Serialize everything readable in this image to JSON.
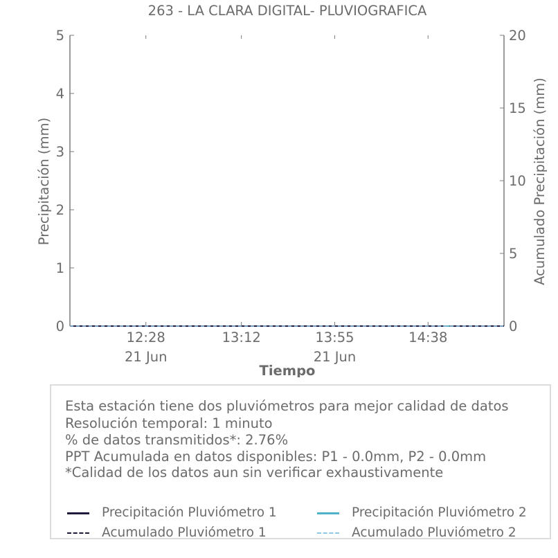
{
  "chart_data": {
    "type": "line",
    "title": "263 - LA CLARA DIGITAL- PLUVIOGRAFICA",
    "xlabel": "Tiempo",
    "ylabel_left": "Precipitación (mm)",
    "ylabel_right": "Acumulado Precipitación (mm)",
    "ylim_left": [
      0,
      5
    ],
    "ylim_right": [
      0,
      20
    ],
    "yticks_left": [
      "0",
      "1",
      "2",
      "3",
      "4",
      "5"
    ],
    "yticks_right": [
      "0",
      "5",
      "10",
      "15",
      "20"
    ],
    "xlim": [
      "11:53",
      "15:13"
    ],
    "xticks": [
      {
        "time": "12:28",
        "sub": "21 Jun"
      },
      {
        "time": "13:12",
        "sub": ""
      },
      {
        "time": "13:55",
        "sub": "21 Jun"
      },
      {
        "time": "14:38",
        "sub": ""
      }
    ],
    "grid": false,
    "series": [
      {
        "name": "Precipitación Pluviómetro 1",
        "axis": "left",
        "style": "solid",
        "color": "#1f1b3d",
        "x": [
          "11:53",
          "15:13"
        ],
        "values": [
          0,
          0
        ]
      },
      {
        "name": "Precipitación Pluviómetro 2",
        "axis": "left",
        "style": "solid",
        "color": "#4fb3c8",
        "x": [
          "14:45",
          "14:48"
        ],
        "values": [
          0,
          0
        ]
      },
      {
        "name": "Acumulado Pluviómetro 1",
        "axis": "right",
        "style": "dashed",
        "color": "#1f1b3d",
        "x": [
          "11:53",
          "15:13"
        ],
        "values": [
          0,
          0
        ]
      },
      {
        "name": "Acumulado Pluviómetro 2",
        "axis": "right",
        "style": "dashed",
        "color": "#8fc7e6",
        "x": [
          "11:53",
          "15:13"
        ],
        "values": [
          0,
          0
        ]
      }
    ]
  },
  "info": {
    "lines": [
      "Esta estación tiene dos pluviómetros para mejor calidad de datos",
      "Resolución temporal: 1 minuto",
      "% de datos transmitidos*: 2.76%",
      "PPT Acumulada en datos disponibles: P1 - 0.0mm, P2 - 0.0mm",
      "*Calidad de los datos aun sin verificar exhaustivamente"
    ]
  },
  "legend": {
    "items": [
      {
        "label": "Precipitación Pluviómetro 1",
        "color": "#1f1b3d",
        "style": "solid"
      },
      {
        "label": "Precipitación Pluviómetro 2",
        "color": "#4fb3c8",
        "style": "solid"
      },
      {
        "label": "Acumulado Pluviómetro 1",
        "color": "#1f1b3d",
        "style": "dashed"
      },
      {
        "label": "Acumulado Pluviómetro 2",
        "color": "#8fc7e6",
        "style": "dashed"
      }
    ]
  }
}
